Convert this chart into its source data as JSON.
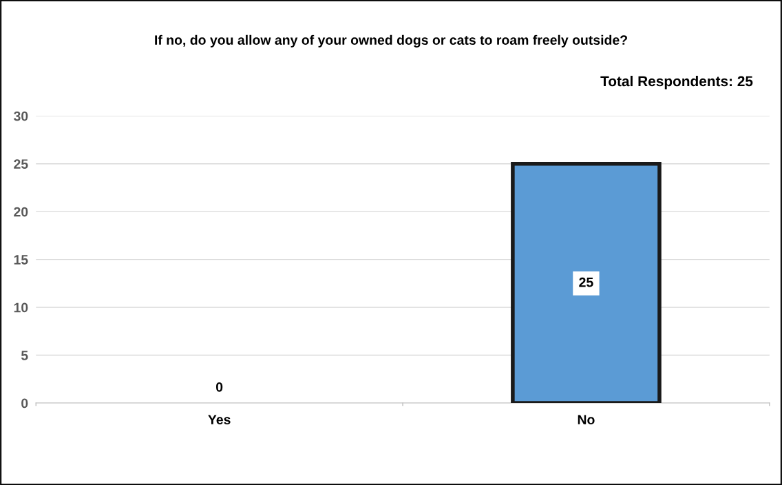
{
  "chart_data": {
    "type": "bar",
    "title": "If no, do you allow any of your owned dogs or cats to roam freely outside?",
    "annotations": [
      "Total Respondents: 25"
    ],
    "categories": [
      "Yes",
      "No"
    ],
    "values": [
      0,
      25
    ],
    "color": "#5b9bd5",
    "ylim": [
      0,
      30
    ],
    "yticks": [
      0,
      5,
      10,
      15,
      20,
      25,
      30
    ],
    "grid": "y",
    "data_labels": true
  }
}
